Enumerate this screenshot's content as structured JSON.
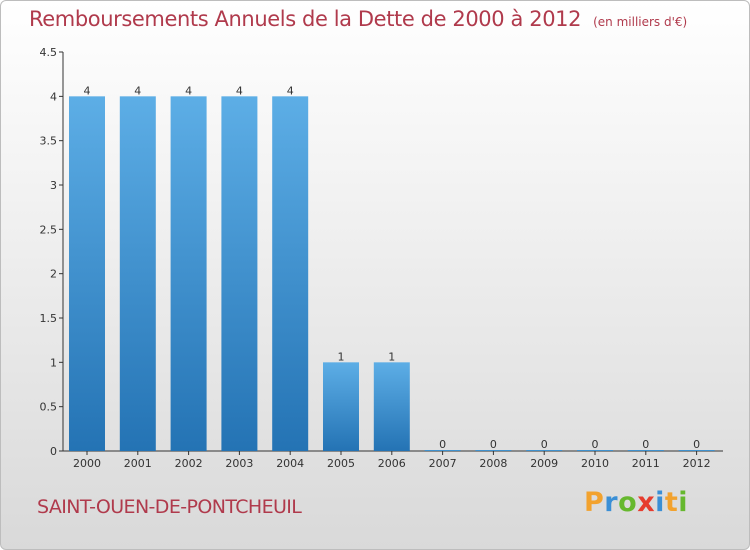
{
  "header": {
    "title": "Remboursements Annuels de la Dette de 2000 à 2012",
    "unit": "(en milliers d'€)"
  },
  "footer": {
    "commune": "SAINT-OUEN-DE-PONTCHEUIL",
    "brand": {
      "letters": [
        "P",
        "r",
        "o",
        "x",
        "i",
        "t",
        "i"
      ],
      "colors": [
        "#f2a22e",
        "#3a8fd6",
        "#66b82e",
        "#e63c2e",
        "#3a8fd6",
        "#f2a22e",
        "#66b82e"
      ]
    }
  },
  "chart_data": {
    "type": "bar",
    "title": "Remboursements Annuels de la Dette de 2000 à 2012",
    "subtitle": "(en milliers d'€)",
    "categories": [
      "2000",
      "2001",
      "2002",
      "2003",
      "2004",
      "2005",
      "2006",
      "2007",
      "2008",
      "2009",
      "2010",
      "2011",
      "2012"
    ],
    "values": [
      4,
      4,
      4,
      4,
      4,
      1,
      1,
      0,
      0,
      0,
      0,
      0,
      0
    ],
    "data_labels": [
      "4",
      "4",
      "4",
      "4",
      "4",
      "1",
      "1",
      "0",
      "0",
      "0",
      "0",
      "0",
      "0"
    ],
    "ylim": [
      0,
      4.5
    ],
    "yticks": [
      0,
      0.5,
      1,
      1.5,
      2,
      2.5,
      3,
      3.5,
      4,
      4.5
    ],
    "ytick_labels": [
      "0",
      "0.5",
      "1",
      "1.5",
      "2",
      "2.5",
      "3",
      "3.5",
      "4",
      "4.5"
    ],
    "xlabel": "",
    "ylabel": "",
    "grid": false,
    "legend": "none",
    "colors": {
      "bar_top": "#5daee6",
      "bar_bottom": "#2473b4",
      "axis": "#333333",
      "text": "#333333"
    }
  }
}
